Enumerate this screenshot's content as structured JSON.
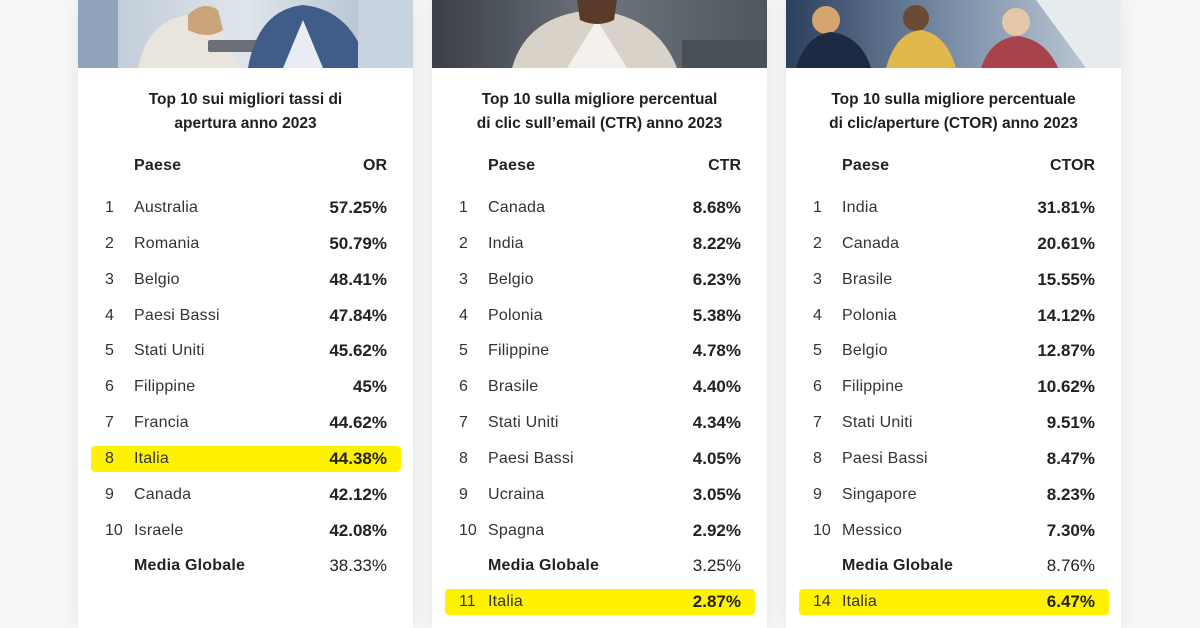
{
  "cards": [
    {
      "title_lines": [
        "Top 10 sui migliori tassi di",
        "apertura anno 2023"
      ],
      "header": {
        "country": "Paese",
        "metric": "OR"
      },
      "rows": [
        {
          "rank": "1",
          "country": "Australia",
          "value": "57.25%"
        },
        {
          "rank": "2",
          "country": "Romania",
          "value": "50.79%"
        },
        {
          "rank": "3",
          "country": "Belgio",
          "value": "48.41%"
        },
        {
          "rank": "4",
          "country": "Paesi Bassi",
          "value": "47.84%"
        },
        {
          "rank": "5",
          "country": "Stati Uniti",
          "value": "45.62%"
        },
        {
          "rank": "6",
          "country": "Filippine",
          "value": "45%"
        },
        {
          "rank": "7",
          "country": "Francia",
          "value": "44.62%"
        },
        {
          "rank": "8",
          "country": "Italia",
          "value": "44.38%"
        },
        {
          "rank": "9",
          "country": "Canada",
          "value": "42.12%"
        },
        {
          "rank": "10",
          "country": "Israele",
          "value": "42.08%"
        }
      ],
      "average": {
        "label": "Media Globale",
        "value": "38.33%"
      }
    },
    {
      "title_lines": [
        "Top 10 sulla migliore percentual",
        "di clic sull’email (CTR) anno 2023"
      ],
      "header": {
        "country": "Paese",
        "metric": "CTR"
      },
      "rows": [
        {
          "rank": "1",
          "country": "Canada",
          "value": "8.68%"
        },
        {
          "rank": "2",
          "country": "India",
          "value": "8.22%"
        },
        {
          "rank": "3",
          "country": "Belgio",
          "value": "6.23%"
        },
        {
          "rank": "4",
          "country": "Polonia",
          "value": "5.38%"
        },
        {
          "rank": "5",
          "country": "Filippine",
          "value": "4.78%"
        },
        {
          "rank": "6",
          "country": "Brasile",
          "value": "4.40%"
        },
        {
          "rank": "7",
          "country": "Stati Uniti",
          "value": "4.34%"
        },
        {
          "rank": "8",
          "country": "Paesi Bassi",
          "value": "4.05%"
        },
        {
          "rank": "9",
          "country": "Ucraina",
          "value": "3.05%"
        },
        {
          "rank": "10",
          "country": "Spagna",
          "value": "2.92%"
        }
      ],
      "average": {
        "label": "Media Globale",
        "value": "3.25%"
      },
      "extra": {
        "rank": "11",
        "country": "Italia",
        "value": "2.87%"
      }
    },
    {
      "title_lines": [
        "Top 10 sulla migliore percentuale",
        "di clic/aperture (CTOR) anno 2023"
      ],
      "header": {
        "country": "Paese",
        "metric": "CTOR"
      },
      "rows": [
        {
          "rank": "1",
          "country": "India",
          "value": "31.81%"
        },
        {
          "rank": "2",
          "country": "Canada",
          "value": "20.61%"
        },
        {
          "rank": "3",
          "country": "Brasile",
          "value": "15.55%"
        },
        {
          "rank": "4",
          "country": "Polonia",
          "value": "14.12%"
        },
        {
          "rank": "5",
          "country": "Belgio",
          "value": "12.87%"
        },
        {
          "rank": "6",
          "country": "Filippine",
          "value": "10.62%"
        },
        {
          "rank": "7",
          "country": "Stati Uniti",
          "value": "9.51%"
        },
        {
          "rank": "8",
          "country": "Paesi Bassi",
          "value": "8.47%"
        },
        {
          "rank": "9",
          "country": "Singapore",
          "value": "8.23%"
        },
        {
          "rank": "10",
          "country": "Messico",
          "value": "7.30%"
        }
      ],
      "average": {
        "label": "Media Globale",
        "value": "8.76%"
      },
      "extra": {
        "rank": "14",
        "country": "Italia",
        "value": "6.47%"
      }
    }
  ],
  "colors": {
    "highlight": "#fff200",
    "card_bg": "#ffffff",
    "page_bg": "#f7f7f8"
  }
}
